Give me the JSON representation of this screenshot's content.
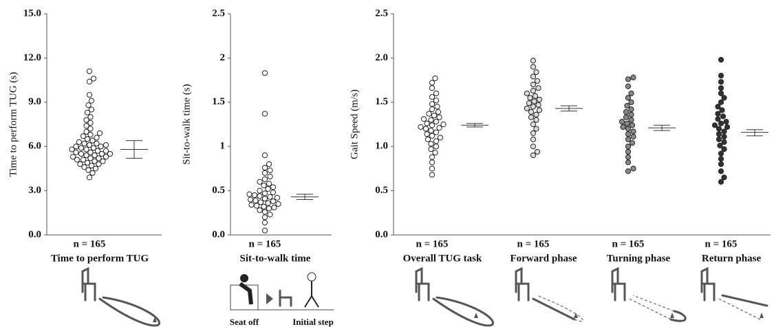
{
  "chart_data": [
    {
      "type": "beeswarm",
      "ylabel": "Time to perform TUG (s)",
      "ylim": [
        0,
        15
      ],
      "yticks": [
        {
          "value": 0,
          "label": "0.0"
        },
        {
          "value": 3,
          "label": "3.0"
        },
        {
          "value": 6,
          "label": "6.0"
        },
        {
          "value": 9,
          "label": "9.0"
        },
        {
          "value": 12,
          "label": "12.0"
        },
        {
          "value": 15,
          "label": "15.0"
        }
      ],
      "groups": [
        {
          "label": "Time to perform TUG",
          "n_label": "n = 165",
          "color": "#ffffff",
          "values": [
            3.9,
            4.2,
            4.4,
            4.5,
            4.6,
            4.7,
            4.8,
            4.8,
            4.9,
            5.0,
            5.0,
            5.1,
            5.1,
            5.2,
            5.2,
            5.3,
            5.3,
            5.4,
            5.4,
            5.5,
            5.5,
            5.5,
            5.6,
            5.6,
            5.7,
            5.7,
            5.8,
            5.8,
            5.9,
            5.9,
            6.0,
            6.0,
            6.1,
            6.1,
            6.2,
            6.2,
            6.3,
            6.4,
            6.5,
            6.6,
            6.7,
            6.8,
            6.9,
            7.0,
            7.2,
            7.4,
            7.6,
            7.8,
            8.0,
            8.3,
            8.5,
            8.8,
            9.1,
            9.5,
            10.4,
            10.6,
            11.1
          ],
          "mean": 5.8,
          "ci": [
            5.2,
            6.4
          ]
        }
      ]
    },
    {
      "type": "beeswarm",
      "ylabel": "Sit-to-walk time (s)",
      "ylim": [
        0,
        2.5
      ],
      "yticks": [
        {
          "value": 0,
          "label": "0.0"
        },
        0.5,
        1,
        1.5,
        2,
        2.5
      ],
      "groups": [
        {
          "label": "Sit-to-walk time",
          "n_label": "n = 165",
          "color": "#ffffff",
          "values": [
            0.05,
            0.14,
            0.2,
            0.23,
            0.26,
            0.28,
            0.3,
            0.31,
            0.32,
            0.33,
            0.34,
            0.35,
            0.36,
            0.37,
            0.38,
            0.39,
            0.4,
            0.41,
            0.42,
            0.43,
            0.44,
            0.45,
            0.46,
            0.47,
            0.48,
            0.5,
            0.52,
            0.54,
            0.56,
            0.58,
            0.6,
            0.63,
            0.66,
            0.7,
            0.73,
            0.76,
            0.8,
            0.9,
            1.37,
            1.83
          ],
          "mean": 0.43,
          "ci": [
            0.4,
            0.46
          ]
        }
      ]
    },
    {
      "type": "beeswarm",
      "ylabel": "Gait Speed (m/s)",
      "ylim": [
        0,
        2.5
      ],
      "yticks": [
        {
          "value": 0,
          "label": "0.0"
        },
        0.5,
        {
          "value": 1,
          "label": "1.0"
        },
        1.5,
        {
          "value": 2,
          "label": "2.0"
        },
        2.5
      ],
      "groups": [
        {
          "label": "Overall TUG task",
          "n_label": "n = 165",
          "color": "#ffffff",
          "values": [
            0.68,
            0.75,
            0.82,
            0.88,
            0.93,
            0.97,
            1.0,
            1.03,
            1.06,
            1.08,
            1.1,
            1.12,
            1.14,
            1.16,
            1.18,
            1.2,
            1.21,
            1.22,
            1.24,
            1.25,
            1.26,
            1.28,
            1.3,
            1.31,
            1.33,
            1.35,
            1.37,
            1.39,
            1.42,
            1.45,
            1.48,
            1.52,
            1.56,
            1.6,
            1.66,
            1.72,
            1.77
          ],
          "mean": 1.24,
          "ci": [
            1.22,
            1.26
          ]
        },
        {
          "label": "Forward phase",
          "n_label": "n = 165",
          "color": "#dcdcdc",
          "values": [
            0.9,
            0.94,
            1.0,
            1.08,
            1.15,
            1.2,
            1.25,
            1.3,
            1.33,
            1.36,
            1.39,
            1.41,
            1.43,
            1.45,
            1.47,
            1.49,
            1.51,
            1.53,
            1.55,
            1.57,
            1.6,
            1.63,
            1.66,
            1.7,
            1.74,
            1.79,
            1.84,
            1.9,
            1.97
          ],
          "mean": 1.43,
          "ci": [
            1.4,
            1.46
          ]
        },
        {
          "label": "Turning phase",
          "n_label": "n = 165",
          "color": "#8a8a8a",
          "values": [
            0.72,
            0.75,
            0.82,
            0.88,
            0.94,
            1.0,
            1.04,
            1.08,
            1.11,
            1.14,
            1.17,
            1.2,
            1.22,
            1.24,
            1.26,
            1.28,
            1.3,
            1.33,
            1.36,
            1.39,
            1.42,
            1.46,
            1.5,
            1.55,
            1.6,
            1.68,
            1.76,
            1.78
          ],
          "mean": 1.21,
          "ci": [
            1.18,
            1.24
          ]
        },
        {
          "label": "Return phase",
          "n_label": "n = 165",
          "color": "#333333",
          "values": [
            0.6,
            0.65,
            0.72,
            0.8,
            0.86,
            0.92,
            0.97,
            1.01,
            1.05,
            1.08,
            1.11,
            1.14,
            1.17,
            1.2,
            1.22,
            1.24,
            1.26,
            1.28,
            1.31,
            1.34,
            1.37,
            1.41,
            1.45,
            1.5,
            1.55,
            1.6,
            1.66,
            1.73,
            1.8,
            1.98
          ],
          "mean": 1.16,
          "ci": [
            1.12,
            1.19
          ]
        }
      ]
    }
  ],
  "illustration_labels": [
    "Seat off",
    "Initial step"
  ]
}
